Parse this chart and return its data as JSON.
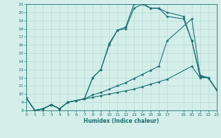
{
  "xlabel": "Humidex (Indice chaleur)",
  "bg_color": "#d4eeea",
  "grid_color": "#b0d8d2",
  "line_color": "#1a6e6e",
  "xlim": [
    0,
    23
  ],
  "ylim": [
    8,
    21
  ],
  "xticks": [
    0,
    1,
    2,
    3,
    4,
    5,
    6,
    7,
    8,
    9,
    10,
    11,
    12,
    13,
    14,
    15,
    16,
    17,
    19,
    20,
    21,
    22,
    23
  ],
  "yticks": [
    8,
    9,
    10,
    11,
    12,
    13,
    14,
    15,
    16,
    17,
    18,
    19,
    20,
    21
  ],
  "lines": [
    {
      "x": [
        0,
        1,
        2,
        3,
        4,
        5,
        6,
        7,
        8,
        9,
        10,
        11,
        12,
        13,
        14,
        15,
        16,
        17,
        20,
        21,
        22,
        23
      ],
      "y": [
        9.5,
        8.0,
        8.2,
        8.7,
        8.2,
        9.0,
        9.2,
        9.4,
        9.6,
        9.8,
        10.0,
        10.2,
        10.4,
        10.6,
        10.9,
        11.2,
        11.5,
        11.8,
        13.4,
        12.0,
        12.0,
        10.5
      ]
    },
    {
      "x": [
        0,
        1,
        2,
        3,
        4,
        5,
        6,
        7,
        8,
        9,
        10,
        11,
        12,
        13,
        14,
        15,
        16,
        17,
        20,
        21,
        22,
        23
      ],
      "y": [
        9.5,
        8.0,
        8.2,
        8.7,
        8.2,
        9.0,
        9.2,
        9.4,
        9.9,
        10.2,
        10.6,
        11.0,
        11.4,
        11.9,
        12.4,
        12.9,
        13.4,
        16.5,
        19.2,
        12.3,
        12.0,
        10.5
      ]
    },
    {
      "x": [
        0,
        1,
        2,
        3,
        4,
        5,
        6,
        7,
        8,
        9,
        10,
        11,
        12,
        13,
        14,
        15,
        16,
        17,
        19,
        20,
        21,
        22,
        23
      ],
      "y": [
        9.5,
        8.0,
        8.2,
        8.7,
        8.2,
        9.0,
        9.2,
        9.4,
        12.0,
        13.0,
        16.0,
        17.8,
        18.0,
        20.5,
        21.0,
        20.5,
        20.5,
        19.5,
        19.2,
        16.5,
        12.2,
        12.0,
        10.5
      ]
    },
    {
      "x": [
        0,
        1,
        2,
        3,
        4,
        5,
        6,
        7,
        8,
        9,
        10,
        11,
        12,
        13,
        14,
        15,
        16,
        17,
        19,
        20,
        21,
        22,
        23
      ],
      "y": [
        9.5,
        8.0,
        8.2,
        8.7,
        8.2,
        9.0,
        9.2,
        9.4,
        12.0,
        13.0,
        16.2,
        17.8,
        18.2,
        21.0,
        21.2,
        20.5,
        20.5,
        20.0,
        19.5,
        16.5,
        12.2,
        12.0,
        10.5
      ]
    }
  ]
}
